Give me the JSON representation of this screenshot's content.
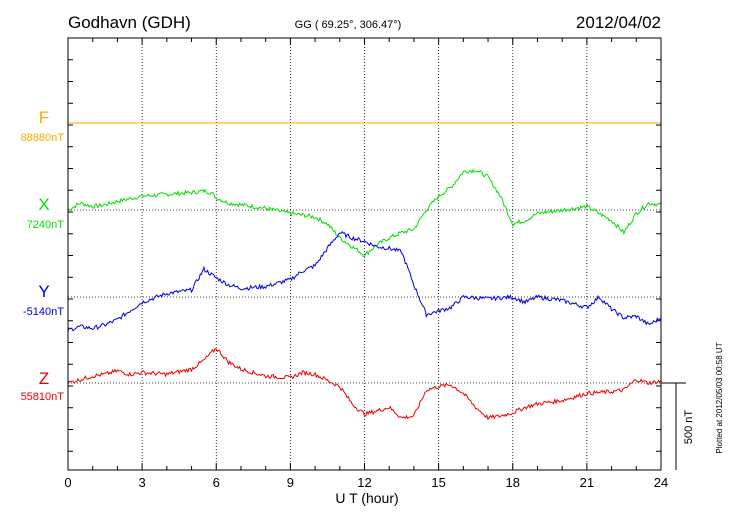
{
  "header": {
    "station": "Godhavn (GDH)",
    "coords": "GG ( 69.25°, 306.47°)",
    "date": "2012/04/02"
  },
  "footer": {
    "plotted": "Plotted at 2012/05/03 00:58 UT",
    "scale_label": "500 nT"
  },
  "colors": {
    "F": "#ffaa00",
    "X": "#00dd00",
    "Y": "#0000dd",
    "Z": "#ee0000",
    "axis": "#000000",
    "grid": "#000000"
  },
  "chart_data": {
    "type": "line",
    "xlabel": "U T (hour)",
    "xlim": [
      0,
      24
    ],
    "xticks": [
      "0",
      "3",
      "6",
      "9",
      "12",
      "15",
      "18",
      "21",
      "24"
    ],
    "grid": true,
    "ylabel_units": "nT",
    "scale_bar_nT": 500,
    "series": [
      {
        "name": "F",
        "baseline_label": "88880nT",
        "x": [
          0,
          24
        ],
        "y_offset_nT": [
          0,
          0
        ]
      },
      {
        "name": "X",
        "baseline_label": "7240nT",
        "x": [
          0,
          0.5,
          1,
          1.5,
          2,
          3,
          4,
          5,
          5.5,
          5.8,
          6,
          6.5,
          7,
          8,
          9,
          10,
          10.5,
          11,
          11.5,
          12,
          12.5,
          13,
          13.5,
          14,
          14.5,
          15,
          15.5,
          16,
          16.5,
          17,
          17.5,
          18,
          18.5,
          19,
          20,
          21,
          22,
          22.5,
          23,
          23.5,
          24
        ],
        "y": [
          0,
          40,
          20,
          30,
          50,
          80,
          90,
          100,
          110,
          100,
          70,
          40,
          30,
          10,
          -20,
          -40,
          -80,
          -160,
          -210,
          -260,
          -200,
          -160,
          -130,
          -110,
          0,
          80,
          130,
          220,
          230,
          190,
          80,
          -80,
          -60,
          -20,
          0,
          20,
          -60,
          -130,
          -20,
          40,
          30
        ]
      },
      {
        "name": "Y",
        "baseline_label": "-5140nT",
        "x": [
          0,
          0.5,
          1,
          1.5,
          2,
          3,
          4,
          4.5,
          5,
          5.5,
          6,
          6.5,
          7,
          8,
          9,
          9.5,
          10,
          10.5,
          11,
          11.5,
          12,
          12.5,
          13,
          13.5,
          14,
          14.5,
          15,
          15.5,
          16,
          17,
          18,
          18.5,
          19,
          20,
          21,
          21.5,
          22,
          22.5,
          23,
          23.5,
          24
        ],
        "y": [
          -190,
          -170,
          -180,
          -160,
          -130,
          -30,
          20,
          30,
          40,
          160,
          110,
          70,
          50,
          60,
          100,
          150,
          180,
          280,
          370,
          340,
          320,
          290,
          280,
          260,
          70,
          -100,
          -80,
          -60,
          0,
          -10,
          0,
          -30,
          0,
          -20,
          -60,
          0,
          -70,
          -120,
          -110,
          -160,
          -120
        ]
      },
      {
        "name": "Z",
        "baseline_label": "55810nT",
        "x": [
          0,
          0.5,
          1,
          1.5,
          2,
          2.5,
          3,
          4,
          5,
          5.5,
          6,
          6.5,
          7,
          8,
          9,
          9.5,
          10,
          11,
          11.5,
          12,
          12.5,
          13,
          13.5,
          14,
          14.5,
          15,
          15.5,
          16,
          16.5,
          17,
          17.5,
          18,
          18.5,
          19,
          20,
          21,
          22,
          22.5,
          23,
          23.5,
          24
        ],
        "y": [
          0,
          20,
          40,
          50,
          70,
          50,
          60,
          50,
          80,
          130,
          200,
          120,
          80,
          40,
          30,
          60,
          50,
          -20,
          -120,
          -180,
          -160,
          -140,
          -200,
          -190,
          -40,
          -20,
          -10,
          -60,
          -140,
          -200,
          -190,
          -170,
          -140,
          -120,
          -100,
          -60,
          -50,
          -40,
          20,
          0,
          10
        ]
      }
    ]
  }
}
